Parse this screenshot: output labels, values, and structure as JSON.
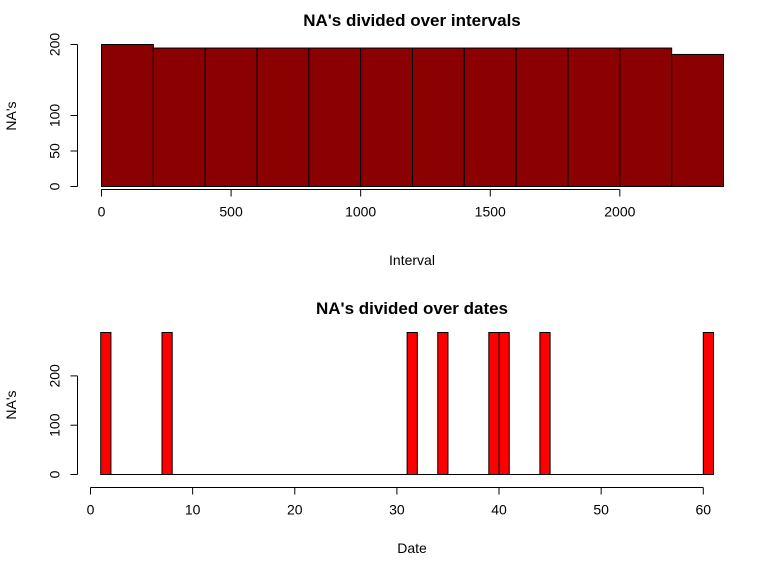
{
  "chart_data": [
    {
      "type": "bar",
      "title": "NA's divided over intervals",
      "xlabel": "Interval",
      "ylabel": "NA's",
      "bar_color": "#8B0000",
      "bin_edges": [
        0,
        200,
        400,
        600,
        800,
        1000,
        1200,
        1400,
        1600,
        1800,
        2000,
        2200,
        2400
      ],
      "values": [
        200,
        195,
        195,
        195,
        195,
        195,
        195,
        195,
        195,
        195,
        195,
        186
      ],
      "xlim": [
        0,
        2400
      ],
      "ylim": [
        0,
        200
      ],
      "xticks": [
        0,
        500,
        1000,
        1500,
        2000
      ],
      "yticks": [
        0,
        50,
        100,
        200
      ],
      "xtick_labels": [
        "0",
        "500",
        "1000",
        "1500",
        "2000"
      ],
      "ytick_labels": [
        "0",
        "50",
        "100",
        "200"
      ]
    },
    {
      "type": "bar",
      "title": "NA's divided over dates",
      "xlabel": "Date",
      "ylabel": "NA's",
      "bar_color": "#FF0000",
      "bin_edges": [
        1,
        2,
        3,
        4,
        5,
        6,
        7,
        8,
        9,
        10,
        11,
        12,
        13,
        14,
        15,
        16,
        17,
        18,
        19,
        20,
        21,
        22,
        23,
        24,
        25,
        26,
        27,
        28,
        29,
        30,
        31,
        32,
        33,
        34,
        35,
        36,
        37,
        38,
        39,
        40,
        41,
        42,
        43,
        44,
        45,
        46,
        47,
        48,
        49,
        50,
        51,
        52,
        53,
        54,
        55,
        56,
        57,
        58,
        59,
        60,
        61
      ],
      "values": [
        288,
        0,
        0,
        0,
        0,
        0,
        288,
        0,
        0,
        0,
        0,
        0,
        0,
        0,
        0,
        0,
        0,
        0,
        0,
        0,
        0,
        0,
        0,
        0,
        0,
        0,
        0,
        0,
        0,
        0,
        288,
        0,
        0,
        288,
        0,
        0,
        0,
        0,
        288,
        288,
        0,
        0,
        0,
        288,
        0,
        0,
        0,
        0,
        0,
        0,
        0,
        0,
        0,
        0,
        0,
        0,
        0,
        0,
        0,
        288
      ],
      "xlim": [
        0,
        61
      ],
      "ylim": [
        0,
        288
      ],
      "xticks": [
        0,
        10,
        20,
        30,
        40,
        50,
        60
      ],
      "yticks": [
        0,
        100,
        200
      ],
      "xtick_labels": [
        "0",
        "10",
        "20",
        "30",
        "40",
        "50",
        "60"
      ],
      "ytick_labels": [
        "0",
        "100",
        "200"
      ]
    }
  ]
}
